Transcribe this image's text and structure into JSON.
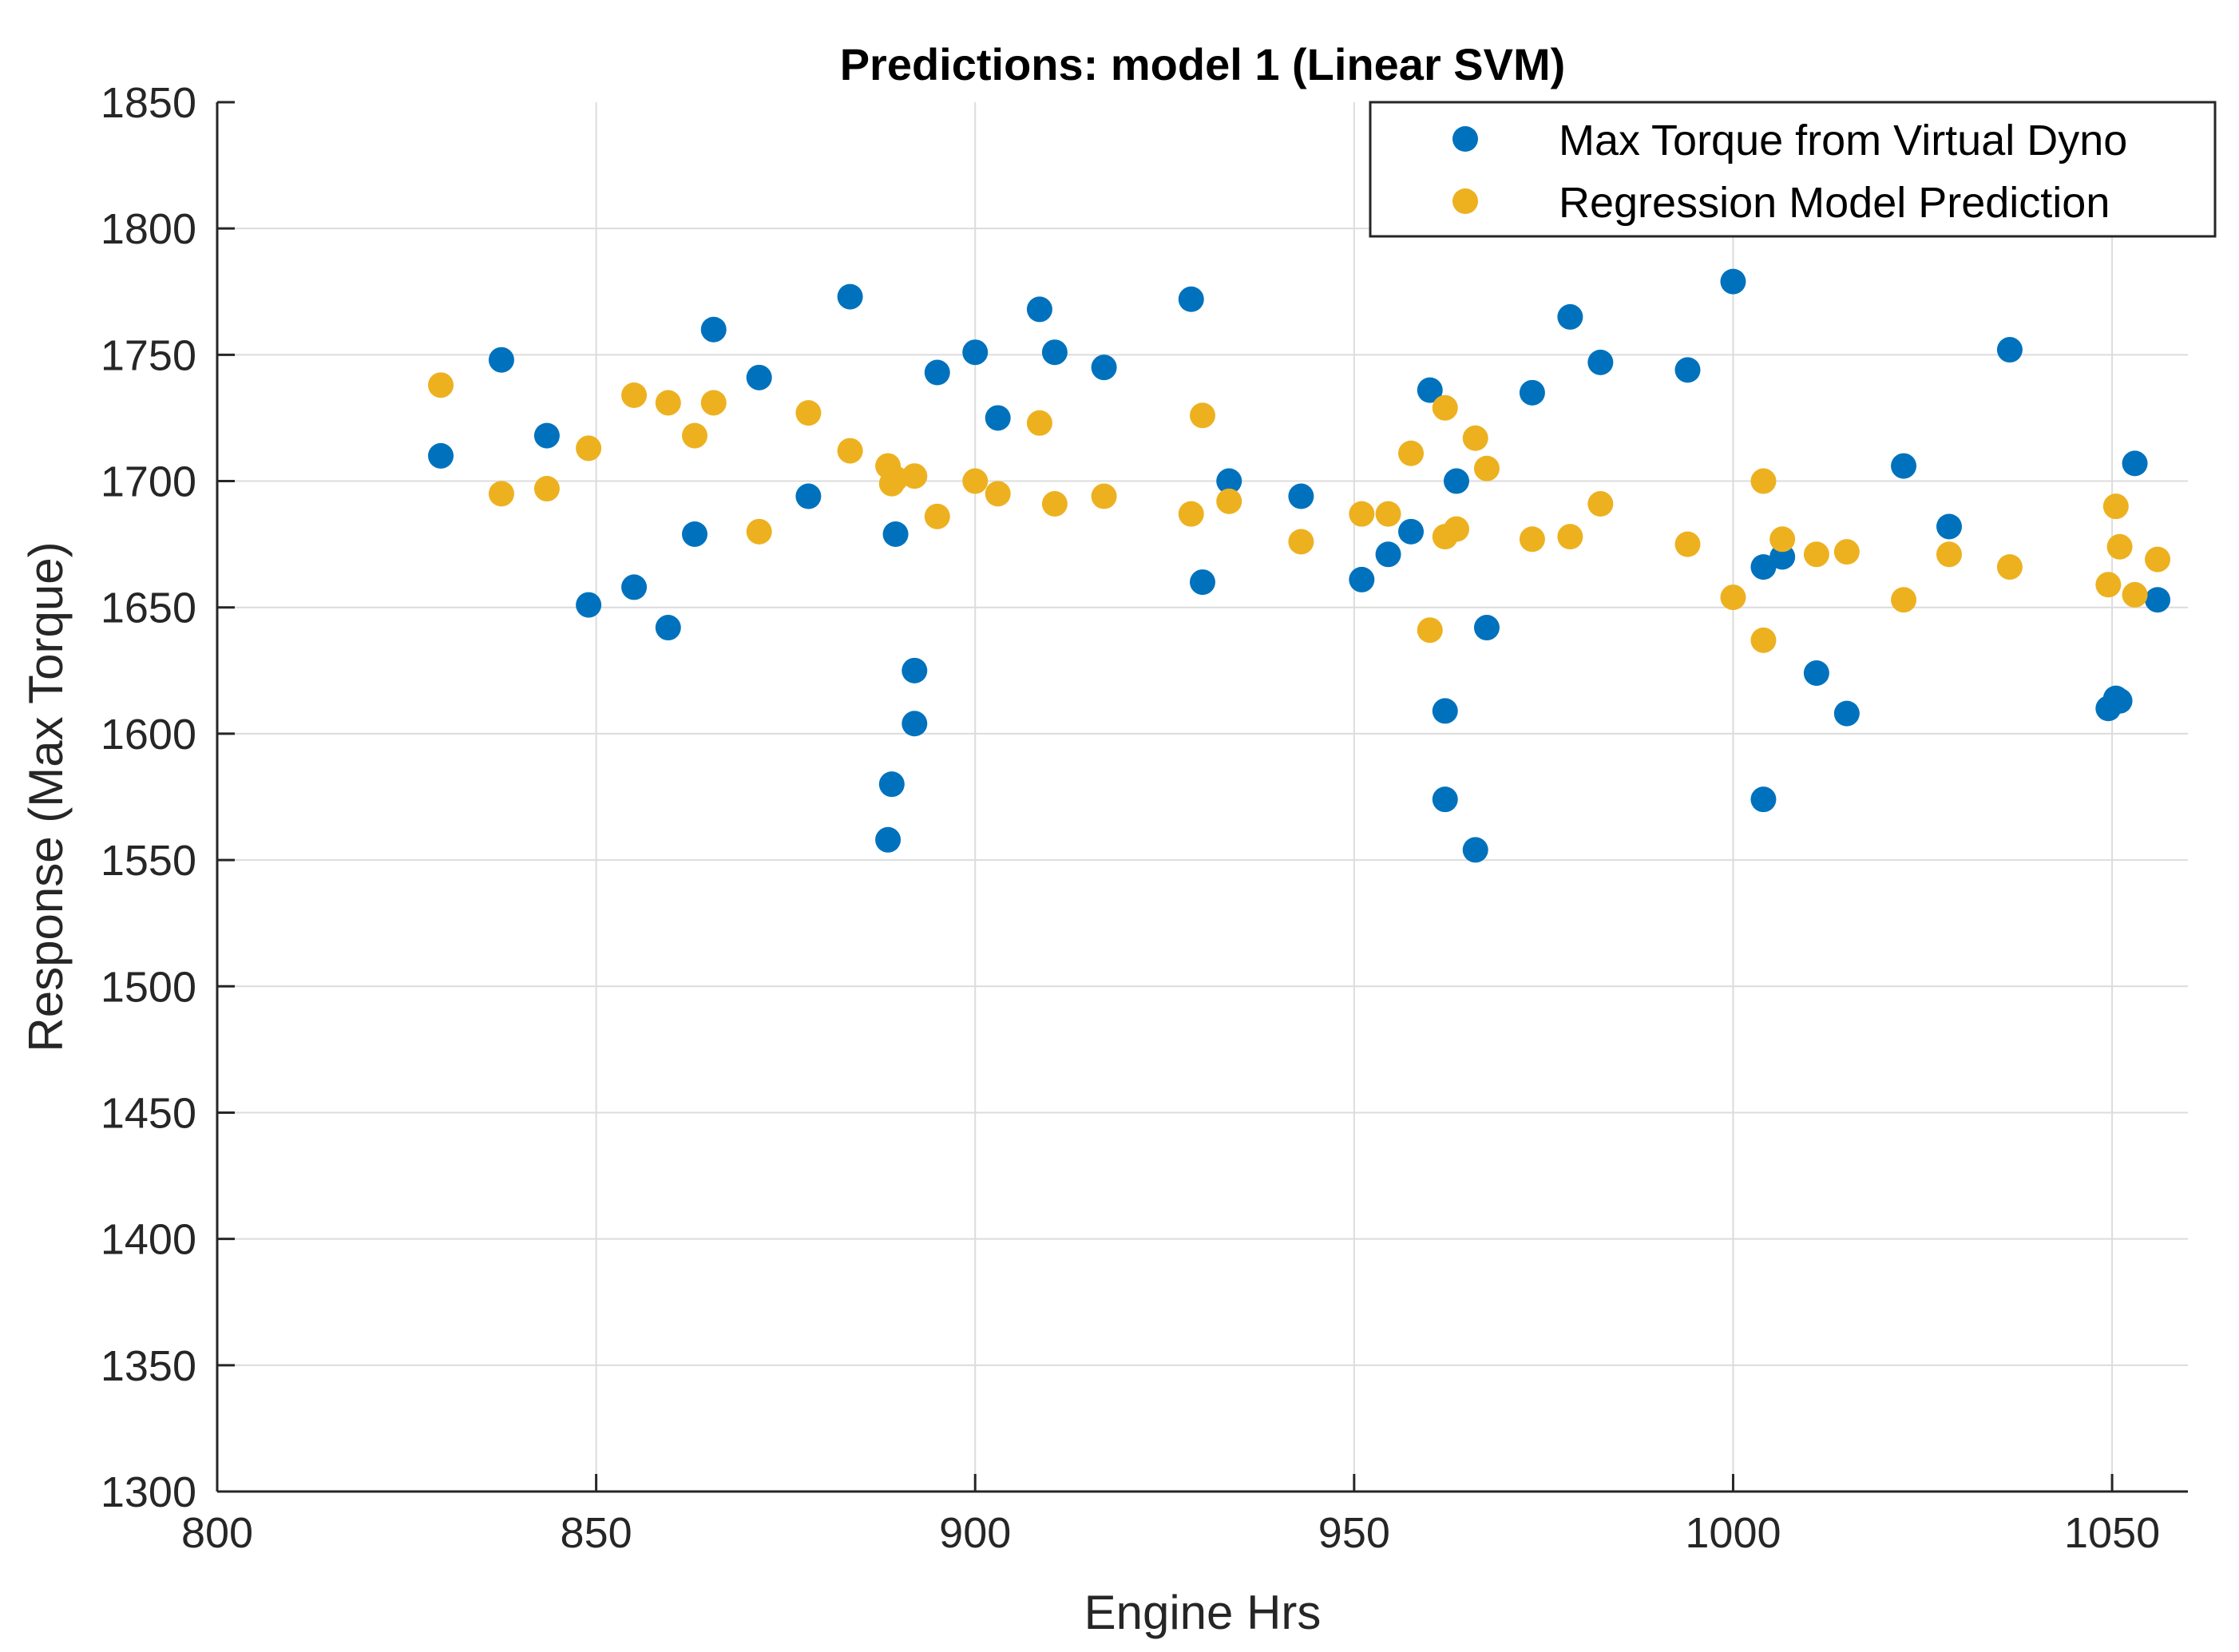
{
  "chart_data": {
    "type": "scatter",
    "title": "Predictions: model 1 (Linear SVM)",
    "xlabel": "Engine Hrs",
    "ylabel": "Response (Max Torque)",
    "xlim": [
      800,
      1060
    ],
    "ylim": [
      1300,
      1850
    ],
    "xticks": [
      800,
      850,
      900,
      950,
      1000,
      1050
    ],
    "yticks": [
      1300,
      1350,
      1400,
      1450,
      1500,
      1550,
      1600,
      1650,
      1700,
      1750,
      1800,
      1850
    ],
    "grid": true,
    "legend_position": "top-right",
    "series": [
      {
        "name": "Max Torque from Virtual Dyno",
        "color": "#0072BD",
        "x": [
          829.5,
          837.5,
          843.5,
          849,
          855,
          859.5,
          863,
          865.5,
          871.5,
          878,
          883.5,
          888.5,
          889,
          889.5,
          892,
          892,
          895,
          900,
          903,
          908.5,
          910.5,
          917,
          928.5,
          930,
          933.5,
          943,
          951,
          954.5,
          957.5,
          960,
          962,
          962,
          963.5,
          966,
          967.5,
          973.5,
          978.5,
          982.5,
          994,
          1000,
          1004,
          1004,
          1006.5,
          1011,
          1015,
          1022.5,
          1028.5,
          1036.5,
          1049.5,
          1050.5,
          1051,
          1053,
          1056
        ],
        "y": [
          1710,
          1748,
          1718,
          1651,
          1658,
          1642,
          1679,
          1760,
          1741,
          1694,
          1773,
          1558,
          1580,
          1679,
          1604,
          1625,
          1743,
          1751,
          1725,
          1768,
          1751,
          1745,
          1772,
          1660,
          1700,
          1694,
          1661,
          1671,
          1680,
          1736,
          1574,
          1609,
          1700,
          1554,
          1642,
          1735,
          1765,
          1747,
          1744,
          1779,
          1666,
          1574,
          1670,
          1624,
          1608,
          1706,
          1682,
          1752,
          1610,
          1614,
          1613,
          1707,
          1653
        ]
      },
      {
        "name": "Regression Model Prediction",
        "color": "#EDB120",
        "x": [
          829.5,
          837.5,
          843.5,
          849,
          855,
          859.5,
          863,
          865.5,
          871.5,
          878,
          883.5,
          888.5,
          889,
          889.5,
          892,
          895,
          900,
          903,
          908.5,
          910.5,
          917,
          928.5,
          930,
          933.5,
          943,
          951,
          954.5,
          957.5,
          960,
          962,
          962,
          963.5,
          966,
          967.5,
          973.5,
          978.5,
          982.5,
          994,
          1000,
          1004,
          1004,
          1006.5,
          1011,
          1015,
          1022.5,
          1028.5,
          1036.5,
          1049.5,
          1050.5,
          1051,
          1053,
          1056
        ],
        "y": [
          1738,
          1695,
          1697,
          1713,
          1734,
          1731,
          1718,
          1731,
          1680,
          1727,
          1712,
          1706,
          1699,
          1701,
          1702,
          1686,
          1700,
          1695,
          1723,
          1691,
          1694,
          1687,
          1726,
          1692,
          1676,
          1687,
          1687,
          1711,
          1641,
          1729,
          1678,
          1681,
          1717,
          1705,
          1677,
          1678,
          1691,
          1675,
          1654,
          1700,
          1637,
          1677,
          1671,
          1672,
          1653,
          1671,
          1666,
          1659,
          1690,
          1674,
          1655,
          1669
        ]
      }
    ]
  }
}
